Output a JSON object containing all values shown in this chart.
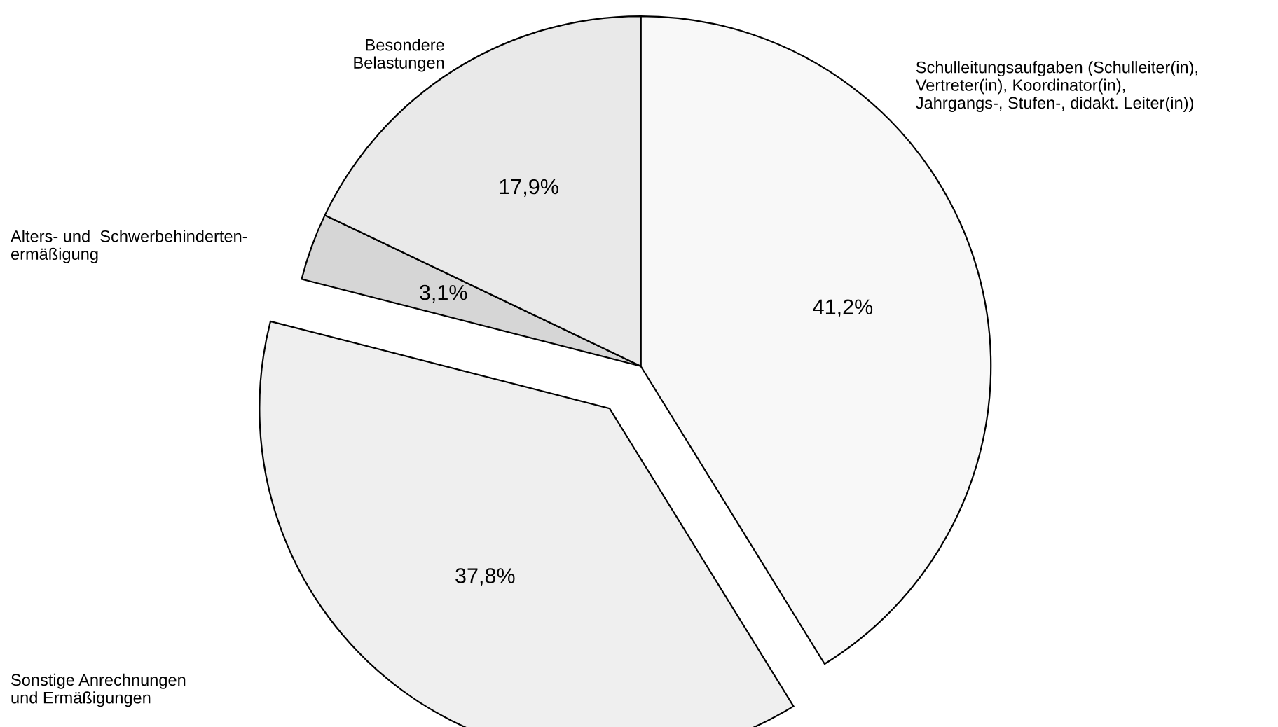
{
  "chart_data": {
    "type": "pie",
    "categories": [
      "Schulleitungsaufgaben (Schulleiter(in),\nVertreter(in), Koordinator(in),\nJahrgangs-, Stufen-, didakt. Leiter(in))",
      "Sonstige Anrechnungen\nund Ermäßigungen",
      "Alters- und  Schwerbehinderten-\nermäßigung",
      "Besondere\nBelastungen"
    ],
    "values": [
      41.2,
      37.8,
      3.1,
      17.9
    ],
    "value_labels": [
      "41,2%",
      "37,8%",
      "3,1%",
      "17,9%"
    ],
    "colors": [
      "#f8f8f8",
      "#efefef",
      "#d6d6d6",
      "#e9e9e9"
    ],
    "legend": false
  }
}
